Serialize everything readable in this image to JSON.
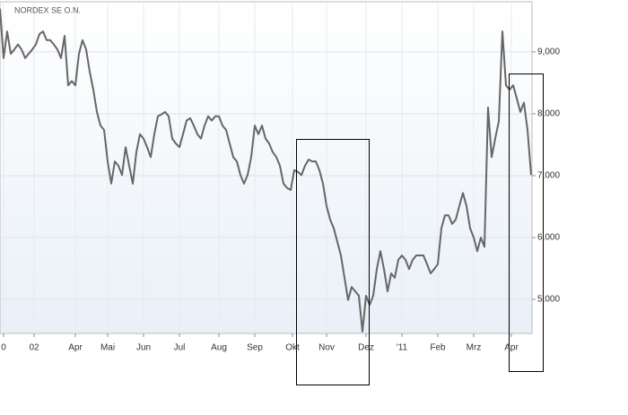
{
  "chart_data": {
    "type": "line",
    "title": "NORDEX SE O.N.",
    "series": [
      {
        "name": "NORDEX SE O.N.",
        "color": "#666666",
        "values": [
          9700,
          8900,
          9330,
          8970,
          9040,
          9120,
          9040,
          8900,
          8970,
          9040,
          9120,
          9290,
          9330,
          9190,
          9190,
          9120,
          9040,
          8900,
          9260,
          8460,
          8530,
          8460,
          8970,
          9190,
          9040,
          8680,
          8390,
          8030,
          7810,
          7740,
          7230,
          6870,
          7230,
          7160,
          7010,
          7460,
          7160,
          6870,
          7380,
          7670,
          7600,
          7460,
          7300,
          7670,
          7960,
          7990,
          8030,
          7960,
          7600,
          7520,
          7460,
          7670,
          7890,
          7930,
          7810,
          7670,
          7600,
          7810,
          7960,
          7890,
          7960,
          7960,
          7810,
          7740,
          7520,
          7300,
          7230,
          7010,
          6870,
          7010,
          7300,
          7810,
          7670,
          7810,
          7600,
          7520,
          7380,
          7300,
          7160,
          6870,
          6800,
          6770,
          7090,
          7060,
          7010,
          7160,
          7260,
          7230,
          7230,
          7090,
          6870,
          6510,
          6290,
          6150,
          5930,
          5710,
          5350,
          4990,
          5200,
          5130,
          5060,
          4480,
          5060,
          4910,
          5060,
          5490,
          5780,
          5490,
          5130,
          5420,
          5350,
          5640,
          5710,
          5640,
          5490,
          5640,
          5710,
          5710,
          5710,
          5570,
          5420,
          5490,
          5570,
          6150,
          6360,
          6360,
          6220,
          6290,
          6510,
          6720,
          6510,
          6150,
          6000,
          5780,
          6000,
          5850,
          8100,
          7300,
          7600,
          7880,
          9330,
          8460,
          8390,
          8460,
          8250,
          8030,
          8180,
          7740,
          7010
        ]
      }
    ],
    "xlim": [
      0,
      148
    ],
    "xticks": [
      {
        "value": 1,
        "label": "0"
      },
      {
        "value": 9.5,
        "label": "02"
      },
      {
        "value": 21,
        "label": "Apr"
      },
      {
        "value": 30,
        "label": "Mai"
      },
      {
        "value": 40,
        "label": "Jun"
      },
      {
        "value": 50,
        "label": "Jul"
      },
      {
        "value": 61,
        "label": "Aug"
      },
      {
        "value": 71,
        "label": "Sep"
      },
      {
        "value": 81.5,
        "label": "Okt"
      },
      {
        "value": 91,
        "label": "Nov"
      },
      {
        "value": 102,
        "label": "Dez"
      },
      {
        "value": 112,
        "label": "'11"
      },
      {
        "value": 122,
        "label": "Feb"
      },
      {
        "value": 132,
        "label": "Mrz"
      },
      {
        "value": 142.5,
        "label": "Apr"
      }
    ],
    "ylim": [
      4450,
      9810
    ],
    "yticks": [
      {
        "value": 5000,
        "label": "5,000"
      },
      {
        "value": 6000,
        "label": "6,000"
      },
      {
        "value": 7000,
        "label": "7,000"
      },
      {
        "value": 8000,
        "label": "8,000"
      },
      {
        "value": 9000,
        "label": "9,000"
      }
    ],
    "grid": true
  }
}
